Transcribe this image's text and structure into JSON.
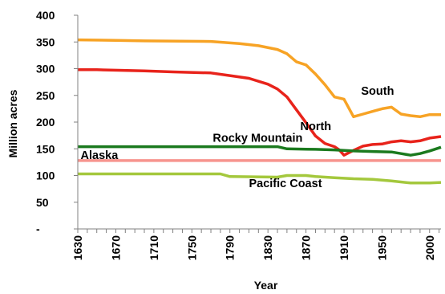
{
  "chart_data": {
    "type": "line",
    "title": "",
    "xlabel": "Year",
    "ylabel": "Million acres",
    "xlim": [
      1630,
      2012
    ],
    "ylim": [
      0,
      400
    ],
    "grid": false,
    "legend": "none (series labeled directly on plot)",
    "x_ticks": [
      "1630",
      "1670",
      "1710",
      "1750",
      "1790",
      "1830",
      "1870",
      "1910",
      "1950",
      "2000"
    ],
    "y_ticks": [
      "-",
      "50",
      "100",
      "150",
      "200",
      "250",
      "300",
      "350",
      "400"
    ],
    "series": [
      {
        "name": "South",
        "color": "#f7a325",
        "x": [
          1630,
          1670,
          1700,
          1770,
          1800,
          1820,
          1840,
          1850,
          1860,
          1870,
          1880,
          1890,
          1900,
          1910,
          1920,
          1930,
          1940,
          1950,
          1960,
          1970,
          1980,
          1990,
          2000,
          2012
        ],
        "values": [
          354,
          353,
          352,
          351,
          347,
          343,
          336,
          328,
          313,
          307,
          290,
          270,
          247,
          243,
          210,
          215,
          220,
          225,
          228,
          215,
          212,
          210,
          214,
          214
        ]
      },
      {
        "name": "North",
        "color": "#e8231b",
        "x": [
          1630,
          1650,
          1700,
          1730,
          1770,
          1790,
          1810,
          1830,
          1840,
          1850,
          1860,
          1870,
          1880,
          1890,
          1900,
          1905,
          1910,
          1920,
          1930,
          1940,
          1950,
          1960,
          1970,
          1980,
          1990,
          2000,
          2012
        ],
        "values": [
          298,
          298,
          296,
          294,
          292,
          287,
          282,
          271,
          262,
          247,
          223,
          199,
          174,
          160,
          154,
          148,
          138,
          147,
          155,
          158,
          159,
          163,
          165,
          163,
          165,
          170,
          173
        ]
      },
      {
        "name": "Rocky Mountain",
        "color": "#1b7a1e",
        "x": [
          1630,
          1700,
          1800,
          1840,
          1850,
          1880,
          1900,
          1920,
          1940,
          1960,
          1970,
          1980,
          1990,
          2000,
          2012
        ],
        "values": [
          154,
          154,
          154,
          154,
          150,
          149,
          148,
          146,
          145,
          144,
          141,
          138,
          141,
          146,
          153
        ]
      },
      {
        "name": "Alaska",
        "color": "#f7948e",
        "x": [
          1630,
          2012
        ],
        "values": [
          128,
          128
        ]
      },
      {
        "name": "Pacific Coast",
        "color": "#a4c83d",
        "x": [
          1630,
          1700,
          1780,
          1790,
          1840,
          1850,
          1870,
          1880,
          1900,
          1920,
          1940,
          1960,
          1980,
          2000,
          2012
        ],
        "values": [
          103,
          103,
          103,
          98,
          97,
          100,
          100,
          98,
          96,
          94,
          93,
          90,
          86,
          86,
          87
        ]
      }
    ],
    "series_labels": [
      {
        "text": "South",
        "x": 1928,
        "y": 251
      },
      {
        "text": "North",
        "x": 1864,
        "y": 185
      },
      {
        "text": "Rocky Mountain",
        "x": 1772,
        "y": 163
      },
      {
        "text": "Alaska",
        "x": 1633,
        "y": 131
      },
      {
        "text": "Pacific Coast",
        "x": 1810,
        "y": 78
      }
    ]
  }
}
